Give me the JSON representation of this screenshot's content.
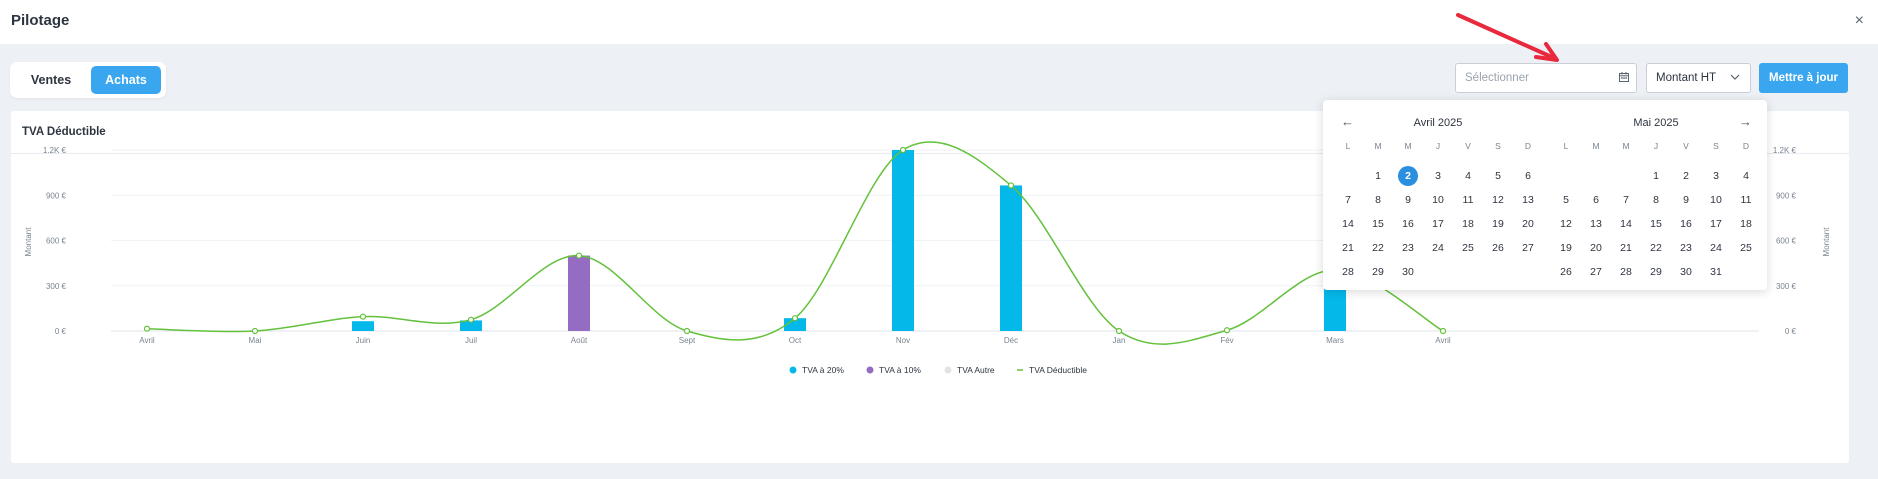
{
  "header": {
    "title": "Pilotage",
    "close_glyph": "×",
    "close_icon": "close-icon"
  },
  "toggle": {
    "ventes": "Ventes",
    "achats": "Achats",
    "active": "Achats"
  },
  "controls": {
    "date_placeholder": "Sélectionner",
    "calendar_icon": "calendar-icon",
    "amount_select": "Montant HT",
    "update_button": "Mettre à jour"
  },
  "annotation": {
    "icon": "red-arrow-icon",
    "color": "#e8283c"
  },
  "card": {
    "title": "TVA Déductible"
  },
  "colors": {
    "primary": "#3aa6ef",
    "tva20": "#05b8ea",
    "tva10": "#946cc2",
    "autre": "#e3e3e3",
    "line": "#63c13b"
  },
  "chart_data": {
    "type": "bar",
    "categories": [
      "Avril",
      "Mai",
      "Juin",
      "Juil",
      "Août",
      "Sept",
      "Oct",
      "Nov",
      "Déc",
      "Jan",
      "Fév",
      "Mars",
      "Avril"
    ],
    "ylabel": "Montant",
    "ylabel_right": "Montant",
    "ylim": [
      0,
      1200
    ],
    "yticks": [
      "0 €",
      "300 €",
      "600 €",
      "900 €",
      "1.2K €"
    ],
    "grid": true,
    "legend_position": "bottom",
    "series": [
      {
        "name": "TVA à 20%",
        "kind": "bar",
        "values": [
          0,
          0,
          65,
          70,
          0,
          0,
          85,
          1200,
          965,
          0,
          0,
          405,
          0
        ]
      },
      {
        "name": "TVA à 10%",
        "kind": "bar",
        "values": [
          0,
          0,
          0,
          0,
          500,
          0,
          0,
          0,
          0,
          0,
          0,
          0,
          0
        ]
      },
      {
        "name": "TVA Autre",
        "kind": "bar",
        "values": [
          0,
          0,
          0,
          0,
          0,
          0,
          0,
          0,
          0,
          0,
          0,
          0,
          0
        ]
      },
      {
        "name": "TVA Déductible",
        "kind": "line",
        "values": [
          15,
          0,
          95,
          75,
          500,
          0,
          85,
          1200,
          965,
          0,
          5,
          405,
          0
        ]
      }
    ]
  },
  "datepicker": {
    "prev_glyph": "←",
    "next_glyph": "→",
    "prev_icon": "arrow-left-icon",
    "next_icon": "arrow-right-icon",
    "weekdays": [
      "L",
      "M",
      "M",
      "J",
      "V",
      "S",
      "D"
    ],
    "months": [
      {
        "title": "Avril 2025",
        "weeks": [
          [
            "",
            "1",
            "2",
            "3",
            "4",
            "5",
            "6"
          ],
          [
            "7",
            "8",
            "9",
            "10",
            "11",
            "12",
            "13"
          ],
          [
            "14",
            "15",
            "16",
            "17",
            "18",
            "19",
            "20"
          ],
          [
            "21",
            "22",
            "23",
            "24",
            "25",
            "26",
            "27"
          ],
          [
            "28",
            "29",
            "30",
            "",
            "",
            "",
            ""
          ]
        ],
        "selected": "2"
      },
      {
        "title": "Mai 2025",
        "weeks": [
          [
            "",
            "",
            "",
            "1",
            "2",
            "3",
            "4"
          ],
          [
            "5",
            "6",
            "7",
            "8",
            "9",
            "10",
            "11"
          ],
          [
            "12",
            "13",
            "14",
            "15",
            "16",
            "17",
            "18"
          ],
          [
            "19",
            "20",
            "21",
            "22",
            "23",
            "24",
            "25"
          ],
          [
            "26",
            "27",
            "28",
            "29",
            "30",
            "31",
            ""
          ]
        ],
        "selected": ""
      }
    ]
  }
}
